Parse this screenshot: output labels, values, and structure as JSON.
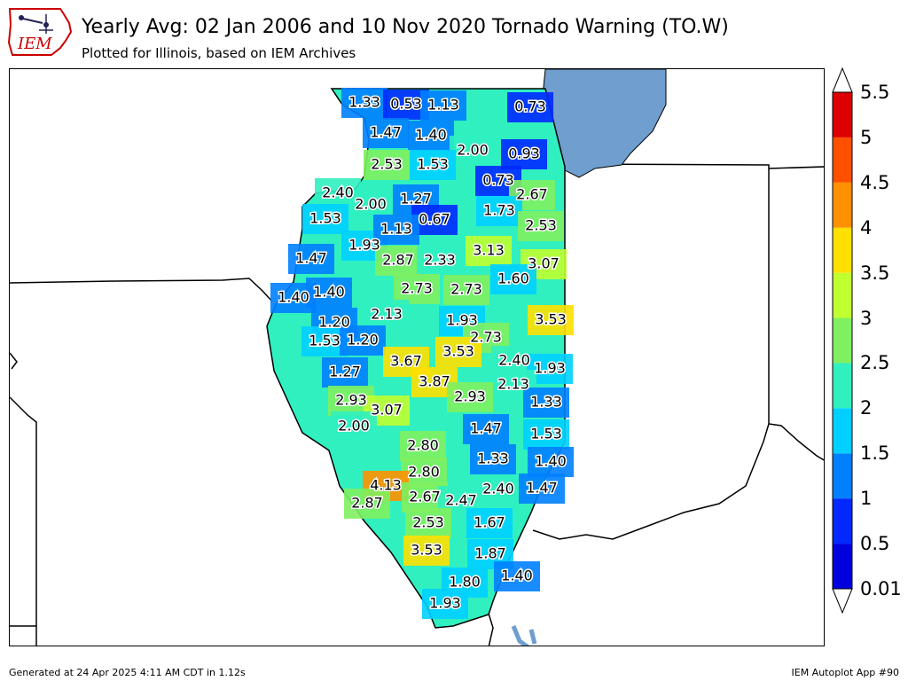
{
  "header": {
    "logo_text": "IEM",
    "title": "Yearly Avg: 02 Jan 2006 and 10 Nov 2020 Tornado Warning (TO.W)",
    "subtitle": "Plotted for Illinois, based on IEM Archives"
  },
  "colors": {
    "lake": "#6f9ecf",
    "border": "#000000",
    "scale": [
      "#0000dd",
      "#0028ff",
      "#0080ff",
      "#00d0ff",
      "#30f0c0",
      "#80f060",
      "#c0ff30",
      "#ffe000",
      "#ff9000",
      "#ff5000",
      "#dd0000"
    ]
  },
  "colorbar": {
    "ticks": [
      "0.01",
      "0.5",
      "1",
      "1.5",
      "2",
      "2.5",
      "3",
      "3.5",
      "4",
      "4.5",
      "5",
      "5.5"
    ],
    "extend": "both"
  },
  "map_values": [
    {
      "label": "1.33",
      "value": 1.33
    },
    {
      "label": "0.53",
      "value": 0.53
    },
    {
      "label": "1.13",
      "value": 1.13
    },
    {
      "label": "0.73",
      "value": 0.73
    },
    {
      "label": "1.47",
      "value": 1.47
    },
    {
      "label": "1.40",
      "value": 1.4
    },
    {
      "label": "2.00",
      "value": 2.0
    },
    {
      "label": "0.93",
      "value": 0.93
    },
    {
      "label": "2.53",
      "value": 2.53
    },
    {
      "label": "1.53",
      "value": 1.53
    },
    {
      "label": "0.73",
      "value": 0.73
    },
    {
      "label": "2.67",
      "value": 2.67
    },
    {
      "label": "2.40",
      "value": 2.4
    },
    {
      "label": "2.00",
      "value": 2.0
    },
    {
      "label": "1.27",
      "value": 1.27
    },
    {
      "label": "0.67",
      "value": 0.67
    },
    {
      "label": "1.73",
      "value": 1.73
    },
    {
      "label": "1.53",
      "value": 1.53
    },
    {
      "label": "2.53",
      "value": 2.53
    },
    {
      "label": "1.93",
      "value": 1.93
    },
    {
      "label": "1.13",
      "value": 1.13
    },
    {
      "label": "3.13",
      "value": 3.13
    },
    {
      "label": "1.47",
      "value": 1.47
    },
    {
      "label": "2.87",
      "value": 2.87
    },
    {
      "label": "2.33",
      "value": 2.33
    },
    {
      "label": "3.07",
      "value": 3.07
    },
    {
      "label": "1.60",
      "value": 1.6
    },
    {
      "label": "1.40",
      "value": 1.4
    },
    {
      "label": "1.40",
      "value": 1.4
    },
    {
      "label": "2.73",
      "value": 2.73
    },
    {
      "label": "2.73",
      "value": 2.73
    },
    {
      "label": "2.13",
      "value": 2.13
    },
    {
      "label": "1.20",
      "value": 1.2
    },
    {
      "label": "1.93",
      "value": 1.93
    },
    {
      "label": "3.53",
      "value": 3.53
    },
    {
      "label": "1.53",
      "value": 1.53
    },
    {
      "label": "1.20",
      "value": 1.2
    },
    {
      "label": "2.73",
      "value": 2.73
    },
    {
      "label": "3.67",
      "value": 3.67
    },
    {
      "label": "3.53",
      "value": 3.53
    },
    {
      "label": "2.40",
      "value": 2.4
    },
    {
      "label": "1.27",
      "value": 1.27
    },
    {
      "label": "1.93",
      "value": 1.93
    },
    {
      "label": "3.87",
      "value": 3.87
    },
    {
      "label": "2.13",
      "value": 2.13
    },
    {
      "label": "2.93",
      "value": 2.93
    },
    {
      "label": "2.93",
      "value": 2.93
    },
    {
      "label": "1.33",
      "value": 1.33
    },
    {
      "label": "3.07",
      "value": 3.07
    },
    {
      "label": "2.00",
      "value": 2.0
    },
    {
      "label": "1.47",
      "value": 1.47
    },
    {
      "label": "1.53",
      "value": 1.53
    },
    {
      "label": "2.80",
      "value": 2.8
    },
    {
      "label": "1.33",
      "value": 1.33
    },
    {
      "label": "1.40",
      "value": 1.4
    },
    {
      "label": "2.80",
      "value": 2.8
    },
    {
      "label": "4.13",
      "value": 4.13
    },
    {
      "label": "2.67",
      "value": 2.67
    },
    {
      "label": "2.40",
      "value": 2.4
    },
    {
      "label": "1.47",
      "value": 1.47
    },
    {
      "label": "2.87",
      "value": 2.87
    },
    {
      "label": "2.47",
      "value": 2.47
    },
    {
      "label": "2.53",
      "value": 2.53
    },
    {
      "label": "1.67",
      "value": 1.67
    },
    {
      "label": "3.53",
      "value": 3.53
    },
    {
      "label": "1.87",
      "value": 1.87
    },
    {
      "label": "1.80",
      "value": 1.8
    },
    {
      "label": "1.40",
      "value": 1.4
    },
    {
      "label": "1.93",
      "value": 1.93
    }
  ],
  "footer": {
    "left": "Generated at 24 Apr 2025 4:11 AM CDT in 1.12s",
    "right": "IEM Autoplot App #90"
  }
}
